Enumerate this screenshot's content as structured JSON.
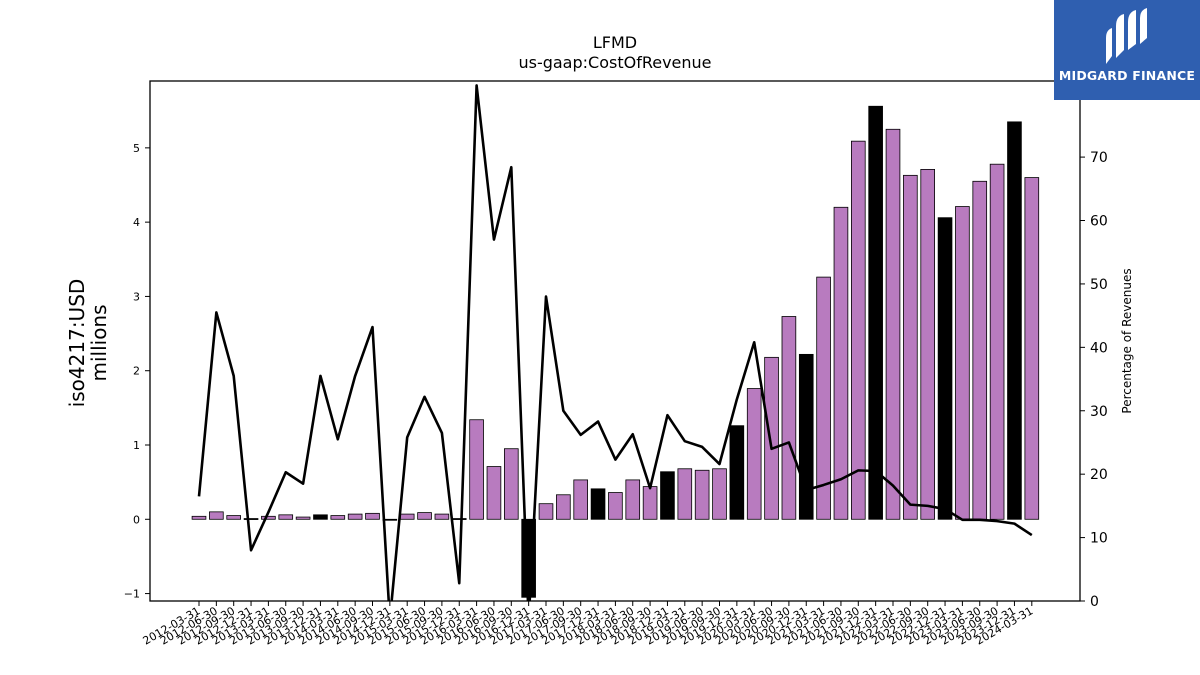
{
  "logo": {
    "brand_text": "MIDGARD FINANCE"
  },
  "chart_data": {
    "type": "bar",
    "title": "LFMD",
    "subtitle": "us-gaap:CostOfRevenue",
    "ylabel": "iso4217:USD\nmillions",
    "y2label": "Percentage of Revenues",
    "ylim": [
      -1.1,
      5.9
    ],
    "y2lim": [
      0,
      82
    ],
    "yticks": [
      -1,
      0,
      1,
      2,
      3,
      4,
      5
    ],
    "y2ticks": [
      0,
      10,
      20,
      30,
      40,
      50,
      60,
      70,
      80
    ],
    "colors": {
      "quarter": "#b87bbf",
      "annual": "#000000",
      "line": "#000000"
    },
    "categories": [
      "2012-03-31",
      "2012-06-30",
      "2012-09-30",
      "2012-12-31",
      "2013-03-31",
      "2013-06-30",
      "2013-09-30",
      "2013-12-31",
      "2014-03-31",
      "2014-06-30",
      "2014-09-30",
      "2014-12-31",
      "2015-03-31",
      "2015-06-30",
      "2015-09-30",
      "2015-12-31",
      "2016-03-31",
      "2016-06-30",
      "2016-09-30",
      "2016-12-31",
      "2017-03-31",
      "2017-06-30",
      "2017-09-30",
      "2017-12-31",
      "2018-03-31",
      "2018-06-30",
      "2018-09-30",
      "2018-12-31",
      "2019-03-31",
      "2019-06-30",
      "2019-09-30",
      "2019-12-31",
      "2020-03-31",
      "2020-06-30",
      "2020-09-30",
      "2020-12-31",
      "2021-03-31",
      "2021-06-30",
      "2021-09-30",
      "2021-12-31",
      "2022-03-31",
      "2022-06-30",
      "2022-09-30",
      "2022-12-31",
      "2023-03-31",
      "2023-06-30",
      "2023-09-30",
      "2023-12-31",
      "2024-03-31"
    ],
    "tick_labels": [
      "2012-03-31",
      "2012-06-30",
      "2012-09-30",
      "2012-12-31",
      "2013-03-31",
      "2013-06-30",
      "2013-09-30",
      "2013-12-31",
      "2014-03-31",
      "2014-06-30",
      "2014-09-30",
      "2014-12-31",
      "2015-03-31",
      "2015-06-30",
      "2015-09-30",
      "2015-12-31",
      "2016-03-31",
      "2016-06-30",
      "2016-09-30",
      "2016-12-31",
      "2017-03-31",
      "2017-06-30",
      "2017-09-30",
      "2017-12-31",
      "2018-03-31",
      "2018-06-30",
      "2018-09-30",
      "2018-12-31",
      "2019-03-31",
      "2019-06-30",
      "2019-09-30",
      "2019-12-31",
      "2020-03-31",
      "2020-06-30",
      "2020-09-30",
      "2020-12-31",
      "2021-03-31",
      "2021-06-30",
      "2021-09-30",
      "2021-12-31",
      "2022-03-31",
      "2022-06-30",
      "2022-09-30",
      "2022-12-31",
      "2023-03-31",
      "2023-06-30",
      "2023-09-30",
      "2023-12-31",
      "2024-03-31"
    ],
    "series": [
      {
        "type": "bar",
        "values": [
          0.04,
          0.1,
          0.05,
          0.01,
          0.04,
          0.06,
          0.03,
          0.06,
          0.05,
          0.07,
          0.08,
          -0.01,
          0.07,
          0.09,
          0.07,
          0.01,
          1.34,
          0.71,
          0.95,
          -1.05,
          0.21,
          0.33,
          0.53,
          0.41,
          0.36,
          0.53,
          0.44,
          0.64,
          0.68,
          0.66,
          0.68,
          1.26,
          1.76,
          2.18,
          2.73,
          2.22,
          3.26,
          4.2,
          5.09,
          5.56,
          5.25,
          4.63,
          4.71,
          4.06,
          4.21,
          4.55,
          4.78,
          5.35,
          4.6
        ],
        "annual": [
          false,
          false,
          false,
          true,
          false,
          false,
          false,
          true,
          false,
          false,
          false,
          true,
          false,
          false,
          false,
          true,
          false,
          false,
          false,
          true,
          false,
          false,
          false,
          true,
          false,
          false,
          false,
          true,
          false,
          false,
          false,
          true,
          false,
          false,
          false,
          true,
          false,
          false,
          false,
          true,
          false,
          false,
          false,
          true,
          false,
          false,
          false,
          true,
          false
        ]
      },
      {
        "type": "line",
        "axis": "right",
        "values": [
          16.5,
          45.5,
          35.5,
          8,
          14,
          20.3,
          18.5,
          35.5,
          25.5,
          35.5,
          43.2,
          -3,
          25.8,
          32.2,
          26.5,
          2.8,
          81.3,
          57,
          68.4,
          -3,
          48,
          30,
          26.2,
          28.3,
          22.3,
          26.3,
          17.8,
          29.3,
          25.2,
          24.3,
          21.6,
          31.8,
          40.8,
          24,
          25,
          17.5,
          18.3,
          19.2,
          20.6,
          20.5,
          18.2,
          15.2,
          15,
          14.5,
          12.8,
          12.8,
          12.6,
          12.2,
          10.4
        ]
      }
    ]
  }
}
